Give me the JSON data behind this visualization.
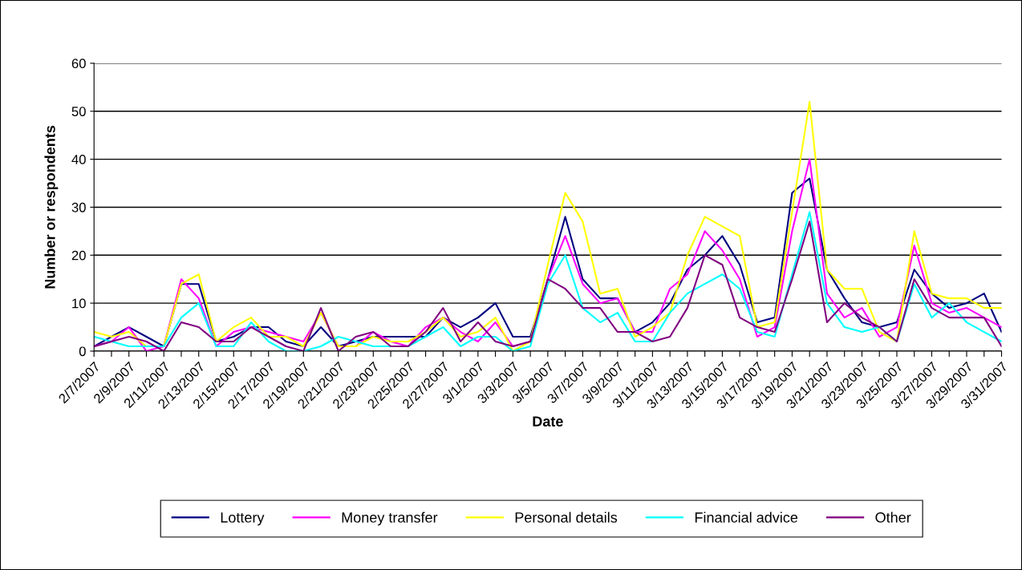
{
  "chart_data": {
    "type": "line",
    "xlabel": "Date",
    "ylabel": "Number or respondents",
    "categories": [
      "2/7/2007",
      null,
      "2/9/2007",
      null,
      "2/11/2007",
      null,
      "2/13/2007",
      null,
      "2/15/2007",
      null,
      "2/17/2007",
      null,
      "2/19/2007",
      null,
      "2/21/2007",
      null,
      "2/23/2007",
      null,
      "2/25/2007",
      null,
      "2/27/2007",
      null,
      "3/1/2007",
      null,
      "3/3/2007",
      null,
      "3/5/2007",
      null,
      "3/7/2007",
      null,
      "3/9/2007",
      null,
      "3/11/2007",
      null,
      "3/13/2007",
      null,
      "3/15/2007",
      null,
      "3/17/2007",
      null,
      "3/19/2007",
      null,
      "3/21/2007",
      null,
      "3/23/2007",
      null,
      "3/25/2007",
      null,
      "3/27/2007",
      null,
      "3/29/2007",
      null,
      "3/31/2007"
    ],
    "series": [
      {
        "name": "Lottery",
        "color": "#000080",
        "values": [
          1,
          3,
          5,
          3,
          1,
          14,
          14,
          2,
          3,
          5,
          5,
          2,
          1,
          5,
          1,
          2,
          3,
          3,
          3,
          3,
          7,
          5,
          7,
          10,
          3,
          3,
          15,
          28,
          15,
          11,
          11,
          4,
          6,
          10,
          17,
          20,
          24,
          18,
          6,
          7,
          33,
          36,
          17,
          11,
          6,
          5,
          6,
          17,
          12,
          9,
          10,
          12,
          4
        ]
      },
      {
        "name": "Money transfer",
        "color": "#ff00ff",
        "values": [
          1,
          2,
          5,
          0,
          1,
          15,
          11,
          1,
          4,
          5,
          4,
          3,
          2,
          8,
          1,
          1,
          4,
          2,
          1,
          5,
          7,
          4,
          2,
          6,
          1,
          2,
          15,
          24,
          14,
          10,
          11,
          4,
          4,
          13,
          16,
          25,
          21,
          15,
          3,
          5,
          25,
          40,
          12,
          7,
          9,
          3,
          5,
          22,
          10,
          8,
          9,
          7,
          5
        ]
      },
      {
        "name": "Personal details",
        "color": "#ffff00",
        "values": [
          4,
          3,
          4,
          1,
          1,
          14,
          16,
          2,
          5,
          7,
          3,
          3,
          1,
          8,
          1,
          1,
          3,
          2,
          2,
          4,
          7,
          3,
          4,
          7,
          0,
          2,
          18,
          33,
          27,
          12,
          13,
          3,
          5,
          8,
          20,
          28,
          26,
          24,
          5,
          6,
          29,
          52,
          17,
          13,
          13,
          4,
          2,
          25,
          12,
          11,
          11,
          9,
          9
        ]
      },
      {
        "name": "Financial advice",
        "color": "#00ffff",
        "values": [
          3,
          2,
          1,
          1,
          1,
          7,
          10,
          1,
          1,
          6,
          2,
          0,
          0,
          1,
          3,
          2,
          1,
          1,
          1,
          3,
          5,
          1,
          3,
          3,
          0,
          1,
          14,
          20,
          9,
          6,
          8,
          2,
          2,
          8,
          12,
          14,
          16,
          13,
          4,
          3,
          16,
          29,
          10,
          5,
          4,
          5,
          2,
          14,
          7,
          10,
          6,
          4,
          2
        ]
      },
      {
        "name": "Other",
        "color": "#800080",
        "values": [
          1,
          2,
          3,
          2,
          0,
          6,
          5,
          2,
          2,
          5,
          3,
          1,
          0,
          9,
          0,
          3,
          4,
          1,
          1,
          4,
          9,
          2,
          6,
          2,
          1,
          2,
          15,
          13,
          9,
          9,
          4,
          4,
          2,
          3,
          9,
          20,
          18,
          7,
          5,
          4,
          15,
          27,
          6,
          10,
          7,
          5,
          2,
          15,
          9,
          7,
          7,
          7,
          1
        ]
      }
    ],
    "ylim": [
      0,
      60
    ],
    "yticks": [
      0,
      10,
      20,
      30,
      40,
      50,
      60
    ],
    "grid": "y",
    "legend": "bottom",
    "marker": "none",
    "line_style": "solid"
  }
}
